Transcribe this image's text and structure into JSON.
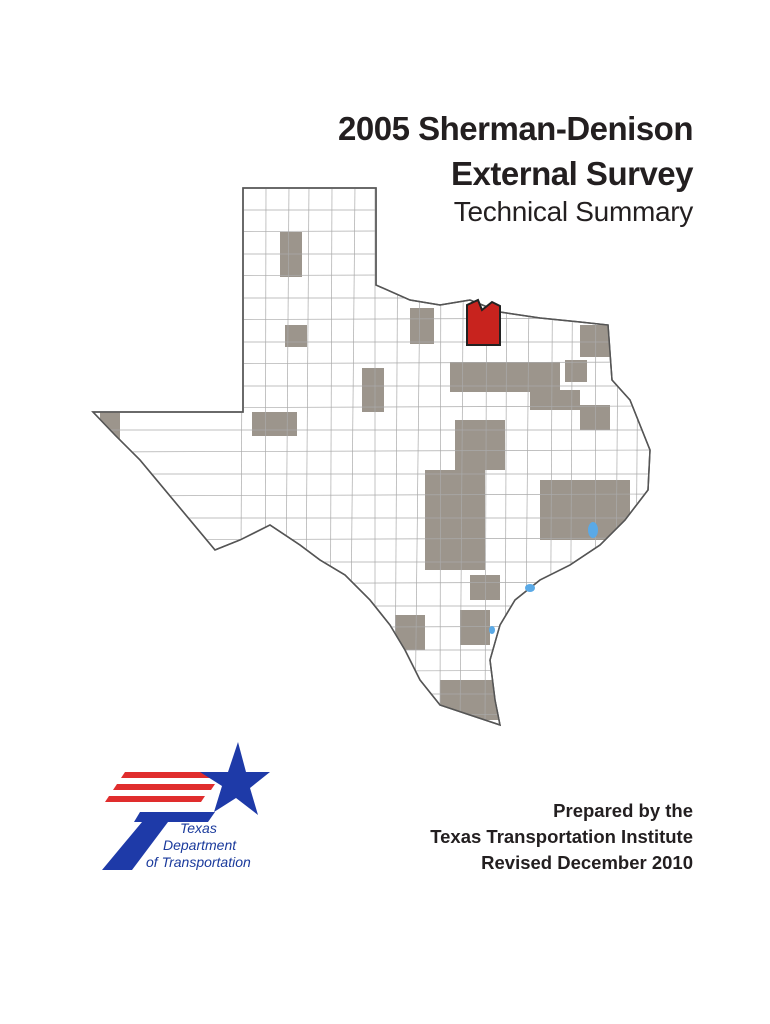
{
  "title": {
    "lines": [
      "2005 Sherman-Denison",
      "External Survey"
    ],
    "subtitle": "Technical Summary"
  },
  "prepared": {
    "lines": [
      "Prepared by the",
      "Texas Transportation Institute",
      "Revised December 2010"
    ]
  },
  "logo": {
    "lines": [
      "Texas",
      "Department",
      "of Transportation"
    ]
  }
}
